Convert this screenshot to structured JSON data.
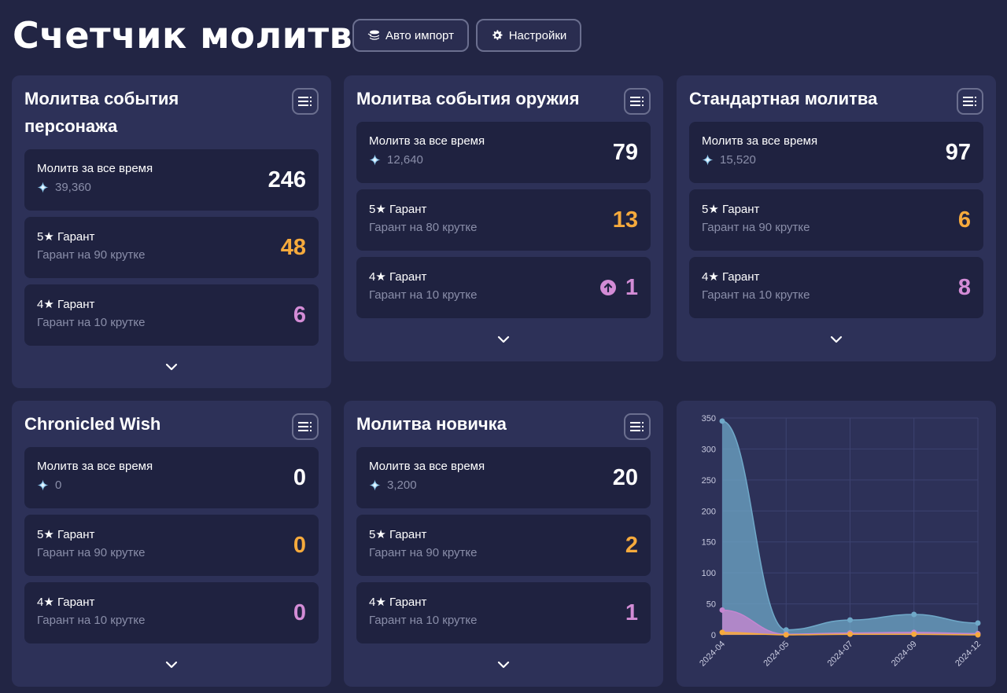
{
  "header": {
    "title": "Счетчик молитв",
    "auto_import_label": "Авто импорт",
    "settings_label": "Настройки"
  },
  "panels": [
    {
      "title": "Молитва события персонажа",
      "total": {
        "label": "Молитв за все время",
        "primogems": "39,360",
        "value": "246"
      },
      "five": {
        "label": "5★ Гарант",
        "sub": "Гарант на 90 крутке",
        "value": "48"
      },
      "four": {
        "label": "4★ Гарант",
        "sub": "Гарант на 10 крутке",
        "value": "6"
      }
    },
    {
      "title": "Молитва события оружия",
      "total": {
        "label": "Молитв за все время",
        "primogems": "12,640",
        "value": "79"
      },
      "five": {
        "label": "5★ Гарант",
        "sub": "Гарант на 80 крутке",
        "value": "13"
      },
      "four": {
        "label": "4★ Гарант",
        "sub": "Гарант на 10 крутке",
        "value": "1"
      }
    },
    {
      "title": "Стандартная молитва",
      "total": {
        "label": "Молитв за все время",
        "primogems": "15,520",
        "value": "97"
      },
      "five": {
        "label": "5★ Гарант",
        "sub": "Гарант на 90 крутке",
        "value": "6"
      },
      "four": {
        "label": "4★ Гарант",
        "sub": "Гарант на 10 крутке",
        "value": "8"
      }
    },
    {
      "title": "Chronicled Wish",
      "total": {
        "label": "Молитв за все время",
        "primogems": "0",
        "value": "0"
      },
      "five": {
        "label": "5★ Гарант",
        "sub": "Гарант на 90 крутке",
        "value": "0"
      },
      "four": {
        "label": "4★ Гарант",
        "sub": "Гарант на 10 крутке",
        "value": "0"
      }
    },
    {
      "title": "Молитва новичка",
      "total": {
        "label": "Молитв за все время",
        "primogems": "3,200",
        "value": "20"
      },
      "five": {
        "label": "5★ Гарант",
        "sub": "Гарант на 90 крутке",
        "value": "2"
      },
      "four": {
        "label": "4★ Гарант",
        "sub": "Гарант на 10 крутке",
        "value": "1"
      }
    }
  ],
  "icons": {
    "primogem": "primogem-icon",
    "menu": "list-menu-icon",
    "expand": "chevron-down-icon",
    "arrow_up": "arrow-up-circle-icon",
    "auto_import": "layers-icon",
    "settings": "gear-icon"
  },
  "colors": {
    "background": "#222544",
    "panel": "#2d3158",
    "card": "#1f2240",
    "orange": "#f6aa3c",
    "purple": "#d38cd6",
    "blue_series": "#6fa8c8"
  },
  "chart_data": {
    "type": "area",
    "x": [
      "2024-04",
      "2024-05",
      "2024-07",
      "2024-09",
      "2024-12"
    ],
    "ylim": [
      0,
      350
    ],
    "yticks": [
      0,
      50,
      100,
      150,
      200,
      250,
      300,
      350
    ],
    "grid": true,
    "series": [
      {
        "color": "#6fa8c8",
        "values": [
          345,
          8,
          24,
          33,
          19
        ]
      },
      {
        "color": "#c486d0",
        "values": [
          40,
          1,
          3,
          4,
          2
        ]
      },
      {
        "color": "#f6aa3c",
        "values": [
          4,
          0,
          1,
          1,
          0
        ]
      }
    ]
  }
}
